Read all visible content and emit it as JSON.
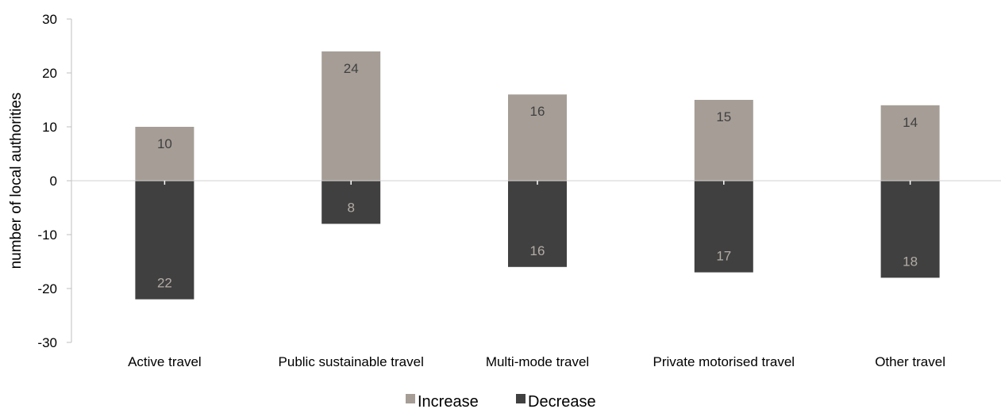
{
  "chart_data": {
    "type": "bar",
    "categories": [
      "Active travel",
      "Public sustainable travel",
      "Multi-mode travel",
      "Private motorised travel",
      "Other travel"
    ],
    "series": [
      {
        "name": "Increase",
        "values": [
          10,
          24,
          16,
          15,
          14
        ],
        "labels": [
          "10",
          "24",
          "16",
          "15",
          "14"
        ],
        "color": "#a59d96",
        "label_color": "#404040"
      },
      {
        "name": "Decrease",
        "values": [
          -22,
          -8,
          -16,
          -17,
          -18
        ],
        "labels": [
          "22",
          "8",
          "16",
          "17",
          "18"
        ],
        "color": "#404040",
        "label_color": "#b3aca6"
      }
    ],
    "ylabel": "number of local authorities",
    "ylim": [
      -30,
      30
    ],
    "yticks": [
      30,
      20,
      10,
      0,
      -10,
      -20,
      -30
    ],
    "ytick_labels": [
      "30",
      "20",
      "10",
      "0",
      "-10",
      "-20",
      "-30"
    ],
    "grid": false,
    "legend": "bottom-center"
  }
}
